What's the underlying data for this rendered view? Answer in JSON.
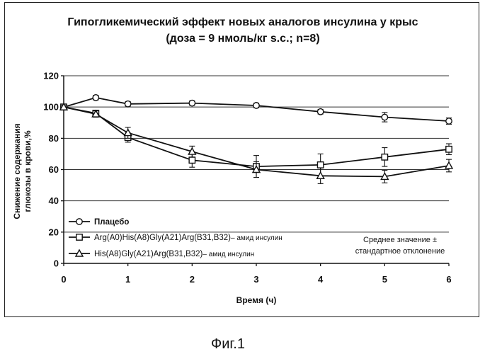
{
  "chart_data": {
    "type": "line",
    "title": "Гипогликемический эффект новых аналогов инсулина у крыс",
    "subtitle": "(доза = 9 нмоль/кг s.c.; n=8)",
    "xlabel": "Время (ч)",
    "ylabel_line1": "Снижение содержания",
    "ylabel_line2": "глюкозы в крови,%",
    "xlim": [
      0,
      6
    ],
    "ylim": [
      0,
      120
    ],
    "x_ticks": [
      "0",
      "1",
      "2",
      "3",
      "4",
      "5",
      "6"
    ],
    "y_ticks": [
      "0",
      "20",
      "40",
      "60",
      "80",
      "100",
      "120"
    ],
    "grid": "horizontal",
    "legend_position": "bottom-left",
    "series": [
      {
        "name": "Плацебо",
        "marker": "circle",
        "points": [
          {
            "x": 0,
            "y": 100,
            "err": 1
          },
          {
            "x": 0.5,
            "y": 106,
            "err": 1.5
          },
          {
            "x": 1,
            "y": 102,
            "err": 1.5
          },
          {
            "x": 2,
            "y": 102.5,
            "err": 1.5
          },
          {
            "x": 3,
            "y": 101,
            "err": 1.5
          },
          {
            "x": 4,
            "y": 97,
            "err": 1.5
          },
          {
            "x": 5,
            "y": 93.5,
            "err": 3
          },
          {
            "x": 6,
            "y": 91,
            "err": 2
          }
        ]
      },
      {
        "name": "Arg(A0)His(A8)Gly(A21)Arg(B31,B32)",
        "name_suffix": "– амид инсулин",
        "marker": "square",
        "points": [
          {
            "x": 0,
            "y": 100,
            "err": 1
          },
          {
            "x": 0.5,
            "y": 96,
            "err": 2
          },
          {
            "x": 1,
            "y": 80.5,
            "err": 3
          },
          {
            "x": 2,
            "y": 66,
            "err": 4.5
          },
          {
            "x": 3,
            "y": 62,
            "err": 7
          },
          {
            "x": 4,
            "y": 63,
            "err": 7
          },
          {
            "x": 5,
            "y": 68,
            "err": 6
          },
          {
            "x": 6,
            "y": 73,
            "err": 3.5
          }
        ]
      },
      {
        "name": "His(A8)Gly(A21)Arg(B31,B32)",
        "name_suffix": "– амид инсулин",
        "marker": "triangle",
        "points": [
          {
            "x": 0,
            "y": 100,
            "err": 1
          },
          {
            "x": 0.5,
            "y": 95.5,
            "err": 2
          },
          {
            "x": 1,
            "y": 83.5,
            "err": 3.5
          },
          {
            "x": 2,
            "y": 71.5,
            "err": 3.5
          },
          {
            "x": 3,
            "y": 60,
            "err": 5
          },
          {
            "x": 4,
            "y": 56,
            "err": 5
          },
          {
            "x": 5,
            "y": 55.5,
            "err": 4
          },
          {
            "x": 6,
            "y": 62.5,
            "err": 4
          }
        ]
      }
    ],
    "note_line1": "Среднее значение ±",
    "note_line2": "стандартное отклонение"
  },
  "figure_caption": "Фиг.1"
}
